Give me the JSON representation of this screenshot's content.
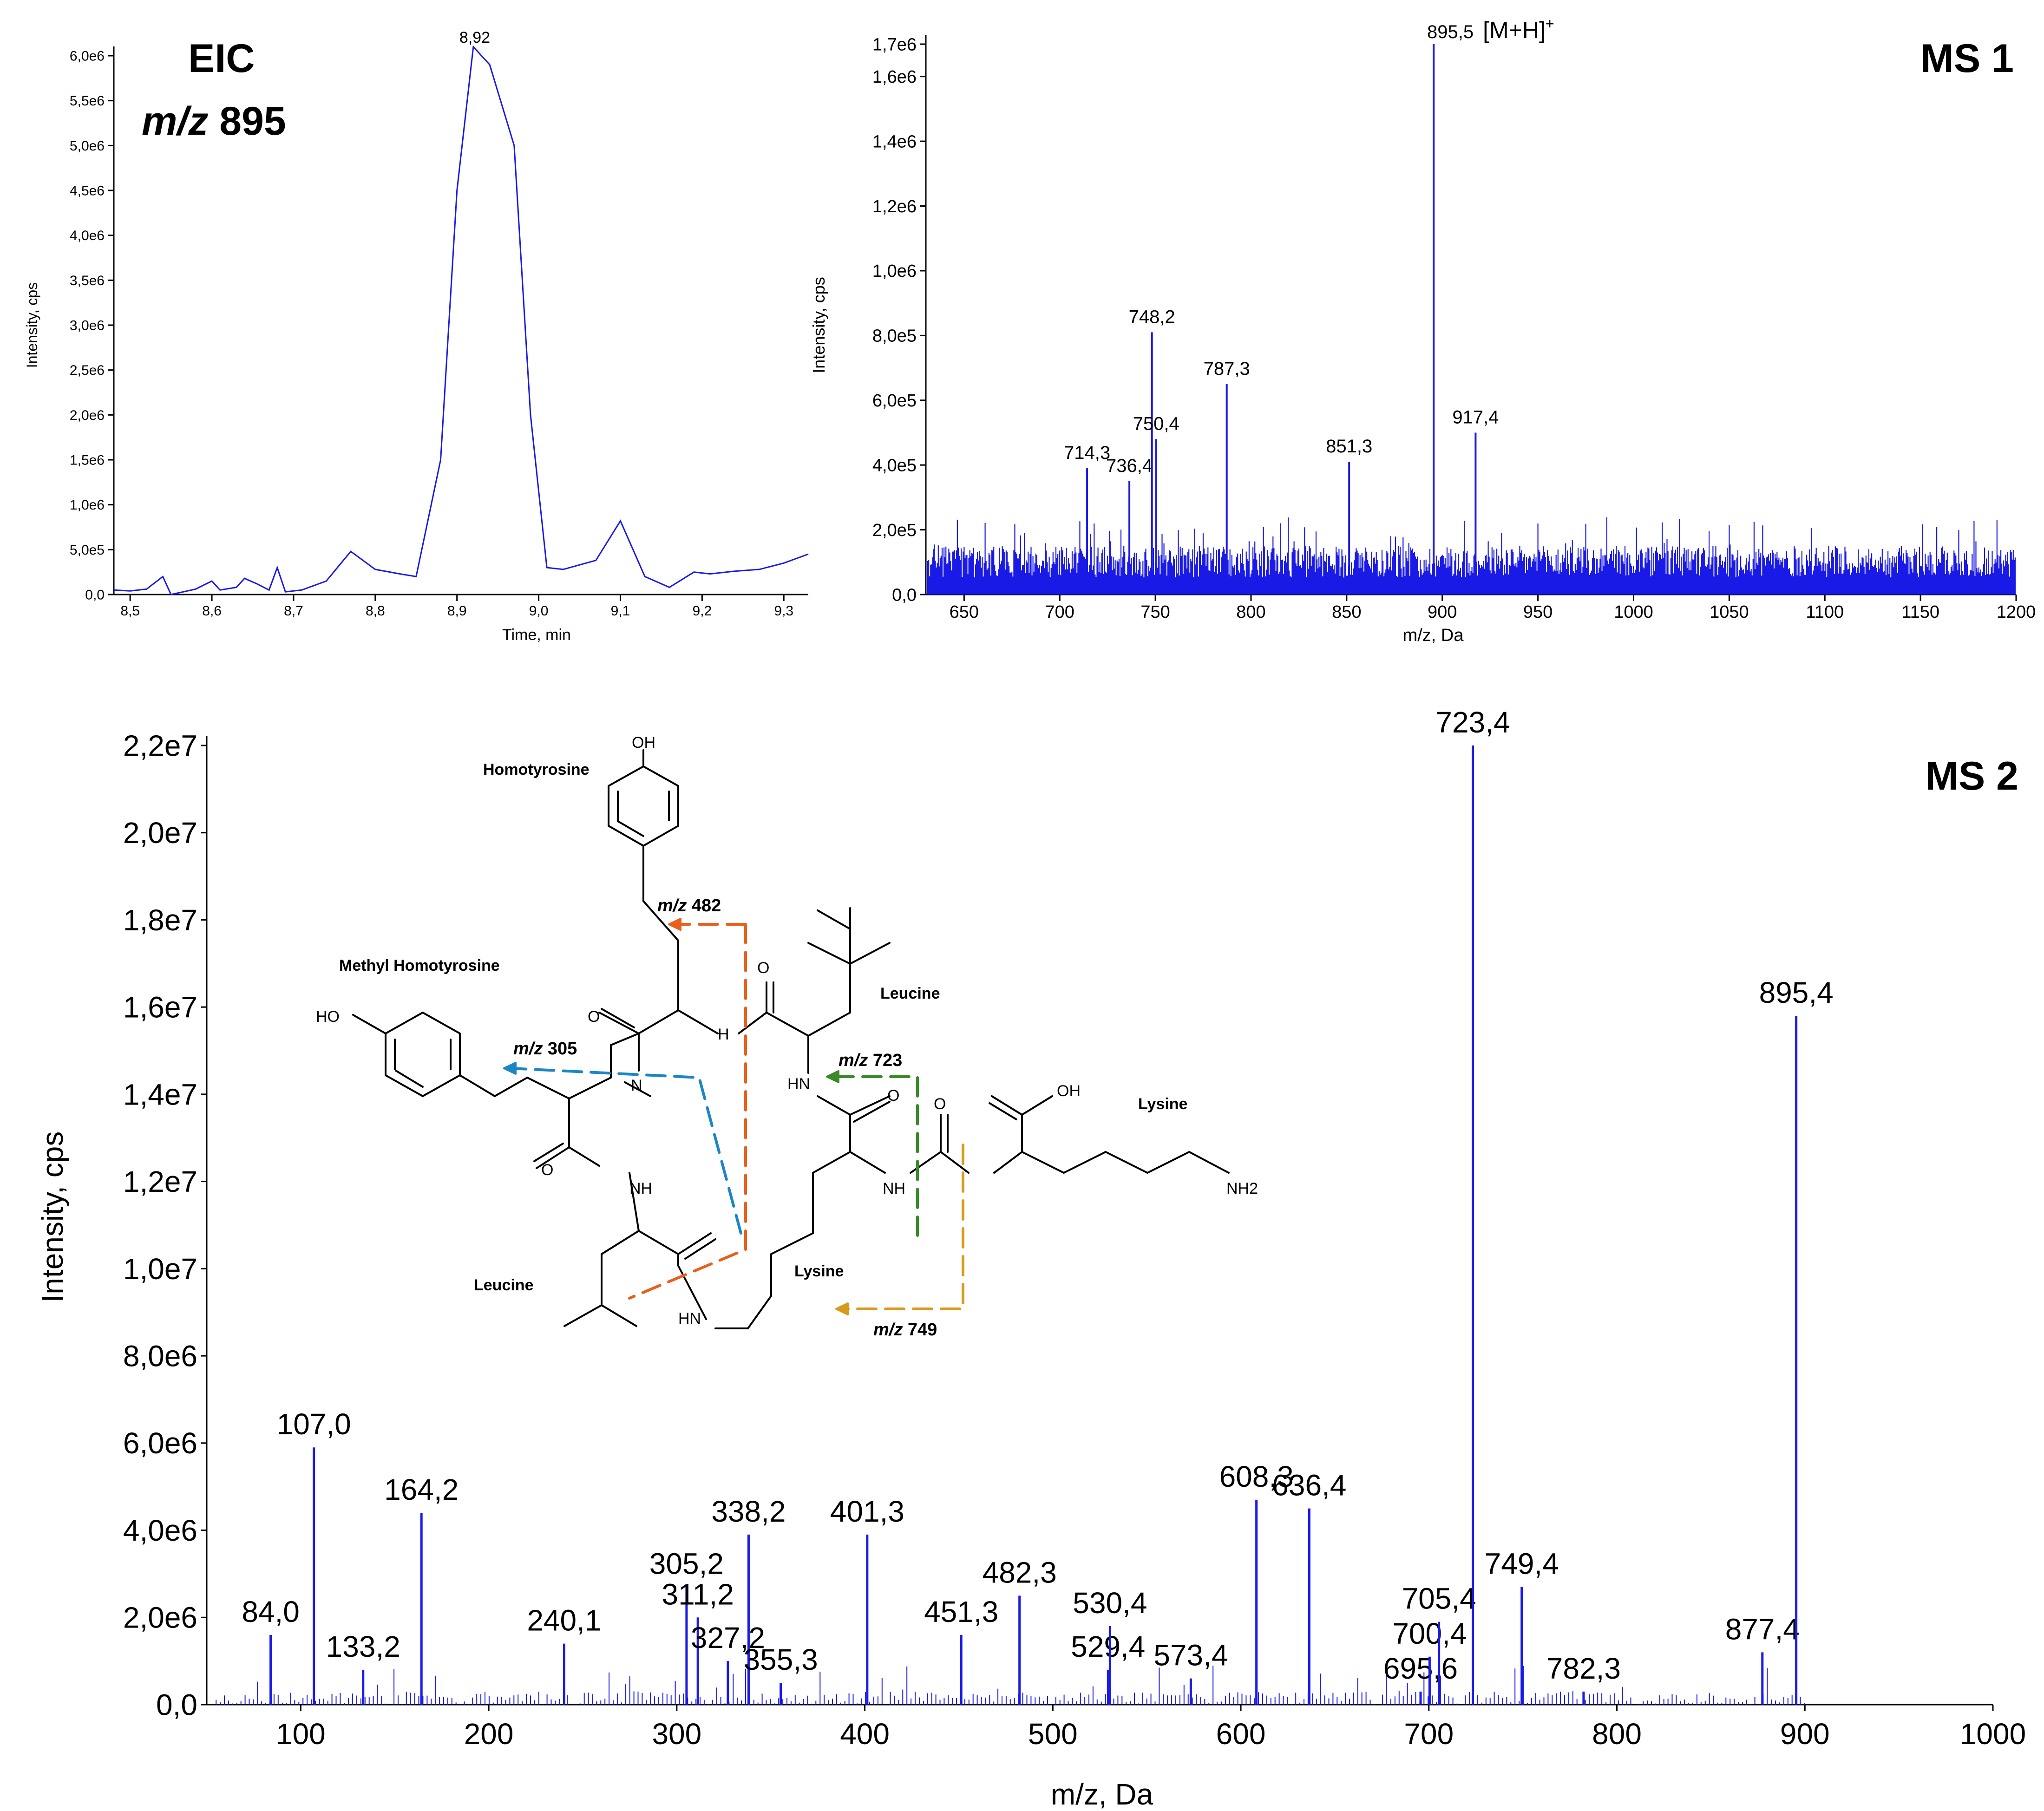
{
  "colors": {
    "trace": "#1a1ae6",
    "axis": "#000000",
    "orange": "#e8601c",
    "blue": "#1b86c6",
    "green": "#3a8a2a",
    "gold": "#d89a1a"
  },
  "eic": {
    "tag_line1": "EIC",
    "tag_line2_italic": "m/z",
    "tag_line2_rest": " 895",
    "apex_label": "8,92",
    "ylabel": "Intensity, cps",
    "xlabel": "Time, min"
  },
  "ms1": {
    "tag": "MS 1",
    "ylabel": "Intensity, cps",
    "xlabel": "m/z, Da",
    "top_label": "895,5",
    "top_annotation": "[M+H]",
    "top_annotation_sup": "+"
  },
  "ms2": {
    "tag": "MS 2",
    "ylabel": "Intensity, cps",
    "xlabel": "m/z, Da"
  },
  "structure": {
    "residues": [
      "Homotyrosine",
      "Methyl Homotyrosine",
      "Leucine",
      "Lysine",
      "Leucine",
      "Lysine"
    ],
    "atoms": [
      "OH",
      "HO",
      "O",
      "O",
      "N",
      "H",
      "O",
      "O",
      "HN",
      "NH",
      "OH",
      "NH",
      "O",
      "HN",
      "NH2"
    ],
    "fragments": [
      {
        "italic": "m/z",
        "value": " 482"
      },
      {
        "italic": "m/z",
        "value": " 305"
      },
      {
        "italic": "m/z",
        "value": " 723"
      },
      {
        "italic": "m/z",
        "value": " 749"
      }
    ]
  },
  "chart_data": [
    {
      "type": "line",
      "xlabel": "Time, min",
      "ylabel": "Intensity, cps",
      "xlim": [
        8.48,
        9.33
      ],
      "ylim": [
        0,
        6000000
      ],
      "xticks": [
        "8,5",
        "8,6",
        "8,7",
        "8,8",
        "8,9",
        "9,0",
        "9,1",
        "9,2",
        "9,3"
      ],
      "yticks": [
        "0,0",
        "5,0e5",
        "1,0e6",
        "1,5e6",
        "2,0e6",
        "2,5e6",
        "3,0e6",
        "3,5e6",
        "4,0e6",
        "4,5e6",
        "5,0e6",
        "5,5e6",
        "6,0e6"
      ],
      "points": [
        [
          8.48,
          50000
        ],
        [
          8.5,
          40000
        ],
        [
          8.52,
          60000
        ],
        [
          8.54,
          200000
        ],
        [
          8.55,
          0
        ],
        [
          8.58,
          60000
        ],
        [
          8.6,
          150000
        ],
        [
          8.61,
          50000
        ],
        [
          8.63,
          80000
        ],
        [
          8.64,
          180000
        ],
        [
          8.655,
          120000
        ],
        [
          8.67,
          50000
        ],
        [
          8.68,
          300000
        ],
        [
          8.69,
          30000
        ],
        [
          8.71,
          50000
        ],
        [
          8.74,
          150000
        ],
        [
          8.77,
          480000
        ],
        [
          8.8,
          280000
        ],
        [
          8.83,
          230000
        ],
        [
          8.85,
          200000
        ],
        [
          8.88,
          1500000
        ],
        [
          8.9,
          4500000
        ],
        [
          8.92,
          6100000
        ],
        [
          8.94,
          5900000
        ],
        [
          8.97,
          5000000
        ],
        [
          8.99,
          2000000
        ],
        [
          9.01,
          300000
        ],
        [
          9.03,
          280000
        ],
        [
          9.07,
          380000
        ],
        [
          9.1,
          820000
        ],
        [
          9.13,
          200000
        ],
        [
          9.16,
          80000
        ],
        [
          9.19,
          250000
        ],
        [
          9.21,
          230000
        ],
        [
          9.24,
          260000
        ],
        [
          9.27,
          280000
        ],
        [
          9.3,
          350000
        ],
        [
          9.33,
          450000
        ]
      ]
    },
    {
      "type": "bar",
      "xlabel": "m/z, Da",
      "ylabel": "Intensity, cps",
      "xlim": [
        630,
        1200
      ],
      "ylim": [
        0,
        1700000
      ],
      "xticks": [
        "650",
        "700",
        "750",
        "800",
        "850",
        "900",
        "950",
        "1000",
        "1050",
        "1100",
        "1150",
        "1200"
      ],
      "yticks": [
        "0,0",
        "2,0e5",
        "4,0e5",
        "6,0e5",
        "8,0e5",
        "1,0e6",
        "1,2e6",
        "1,4e6",
        "1,6e6",
        "1,7e6"
      ],
      "noise_level": 150000,
      "peaks": [
        {
          "x": 714.3,
          "y": 390000,
          "label": "714,3"
        },
        {
          "x": 736.4,
          "y": 350000,
          "label": "736,4"
        },
        {
          "x": 748.2,
          "y": 810000,
          "label": "748,2"
        },
        {
          "x": 750.4,
          "y": 480000,
          "label": "750,4"
        },
        {
          "x": 787.3,
          "y": 650000,
          "label": "787,3"
        },
        {
          "x": 851.3,
          "y": 410000,
          "label": "851,3"
        },
        {
          "x": 895.5,
          "y": 1700000,
          "label": "895,5"
        },
        {
          "x": 917.4,
          "y": 500000,
          "label": "917,4"
        }
      ]
    },
    {
      "type": "bar",
      "xlabel": "m/z, Da",
      "ylabel": "Intensity, cps",
      "xlim": [
        50,
        1000
      ],
      "ylim": [
        0,
        22000000
      ],
      "xticks": [
        "100",
        "200",
        "300",
        "400",
        "500",
        "600",
        "700",
        "800",
        "900",
        "1000"
      ],
      "yticks": [
        "0,0",
        "2,0e6",
        "4,0e6",
        "6,0e6",
        "8,0e6",
        "1,0e7",
        "1,2e7",
        "1,4e7",
        "1,6e7",
        "1,8e7",
        "2,0e7",
        "2,2e7"
      ],
      "peaks": [
        {
          "x": 84.0,
          "y": 1600000,
          "label": "84,0"
        },
        {
          "x": 107.0,
          "y": 5900000,
          "label": "107,0"
        },
        {
          "x": 133.2,
          "y": 800000,
          "label": "133,2"
        },
        {
          "x": 164.2,
          "y": 4400000,
          "label": "164,2"
        },
        {
          "x": 240.1,
          "y": 1400000,
          "label": "240,1"
        },
        {
          "x": 305.2,
          "y": 2700000,
          "label": "305,2"
        },
        {
          "x": 311.2,
          "y": 2000000,
          "label": "311,2"
        },
        {
          "x": 327.2,
          "y": 1000000,
          "label": "327,2"
        },
        {
          "x": 338.2,
          "y": 3900000,
          "label": "338,2"
        },
        {
          "x": 355.3,
          "y": 500000,
          "label": "355,3"
        },
        {
          "x": 401.3,
          "y": 3900000,
          "label": "401,3"
        },
        {
          "x": 451.3,
          "y": 1600000,
          "label": "451,3"
        },
        {
          "x": 482.3,
          "y": 2500000,
          "label": "482,3"
        },
        {
          "x": 529.4,
          "y": 800000,
          "label": "529,4"
        },
        {
          "x": 530.4,
          "y": 1800000,
          "label": "530,4"
        },
        {
          "x": 573.4,
          "y": 600000,
          "label": "573,4"
        },
        {
          "x": 608.3,
          "y": 4700000,
          "label": "608,3"
        },
        {
          "x": 636.4,
          "y": 4500000,
          "label": "636,4"
        },
        {
          "x": 695.6,
          "y": 300000,
          "label": "695,6"
        },
        {
          "x": 700.4,
          "y": 1100000,
          "label": "700,4"
        },
        {
          "x": 705.4,
          "y": 1900000,
          "label": "705,4"
        },
        {
          "x": 723.4,
          "y": 22000000,
          "label": "723,4"
        },
        {
          "x": 749.4,
          "y": 2700000,
          "label": "749,4"
        },
        {
          "x": 782.3,
          "y": 300000,
          "label": "782,3"
        },
        {
          "x": 877.4,
          "y": 1200000,
          "label": "877,4"
        },
        {
          "x": 895.4,
          "y": 15800000,
          "label": "895,4"
        }
      ]
    }
  ]
}
